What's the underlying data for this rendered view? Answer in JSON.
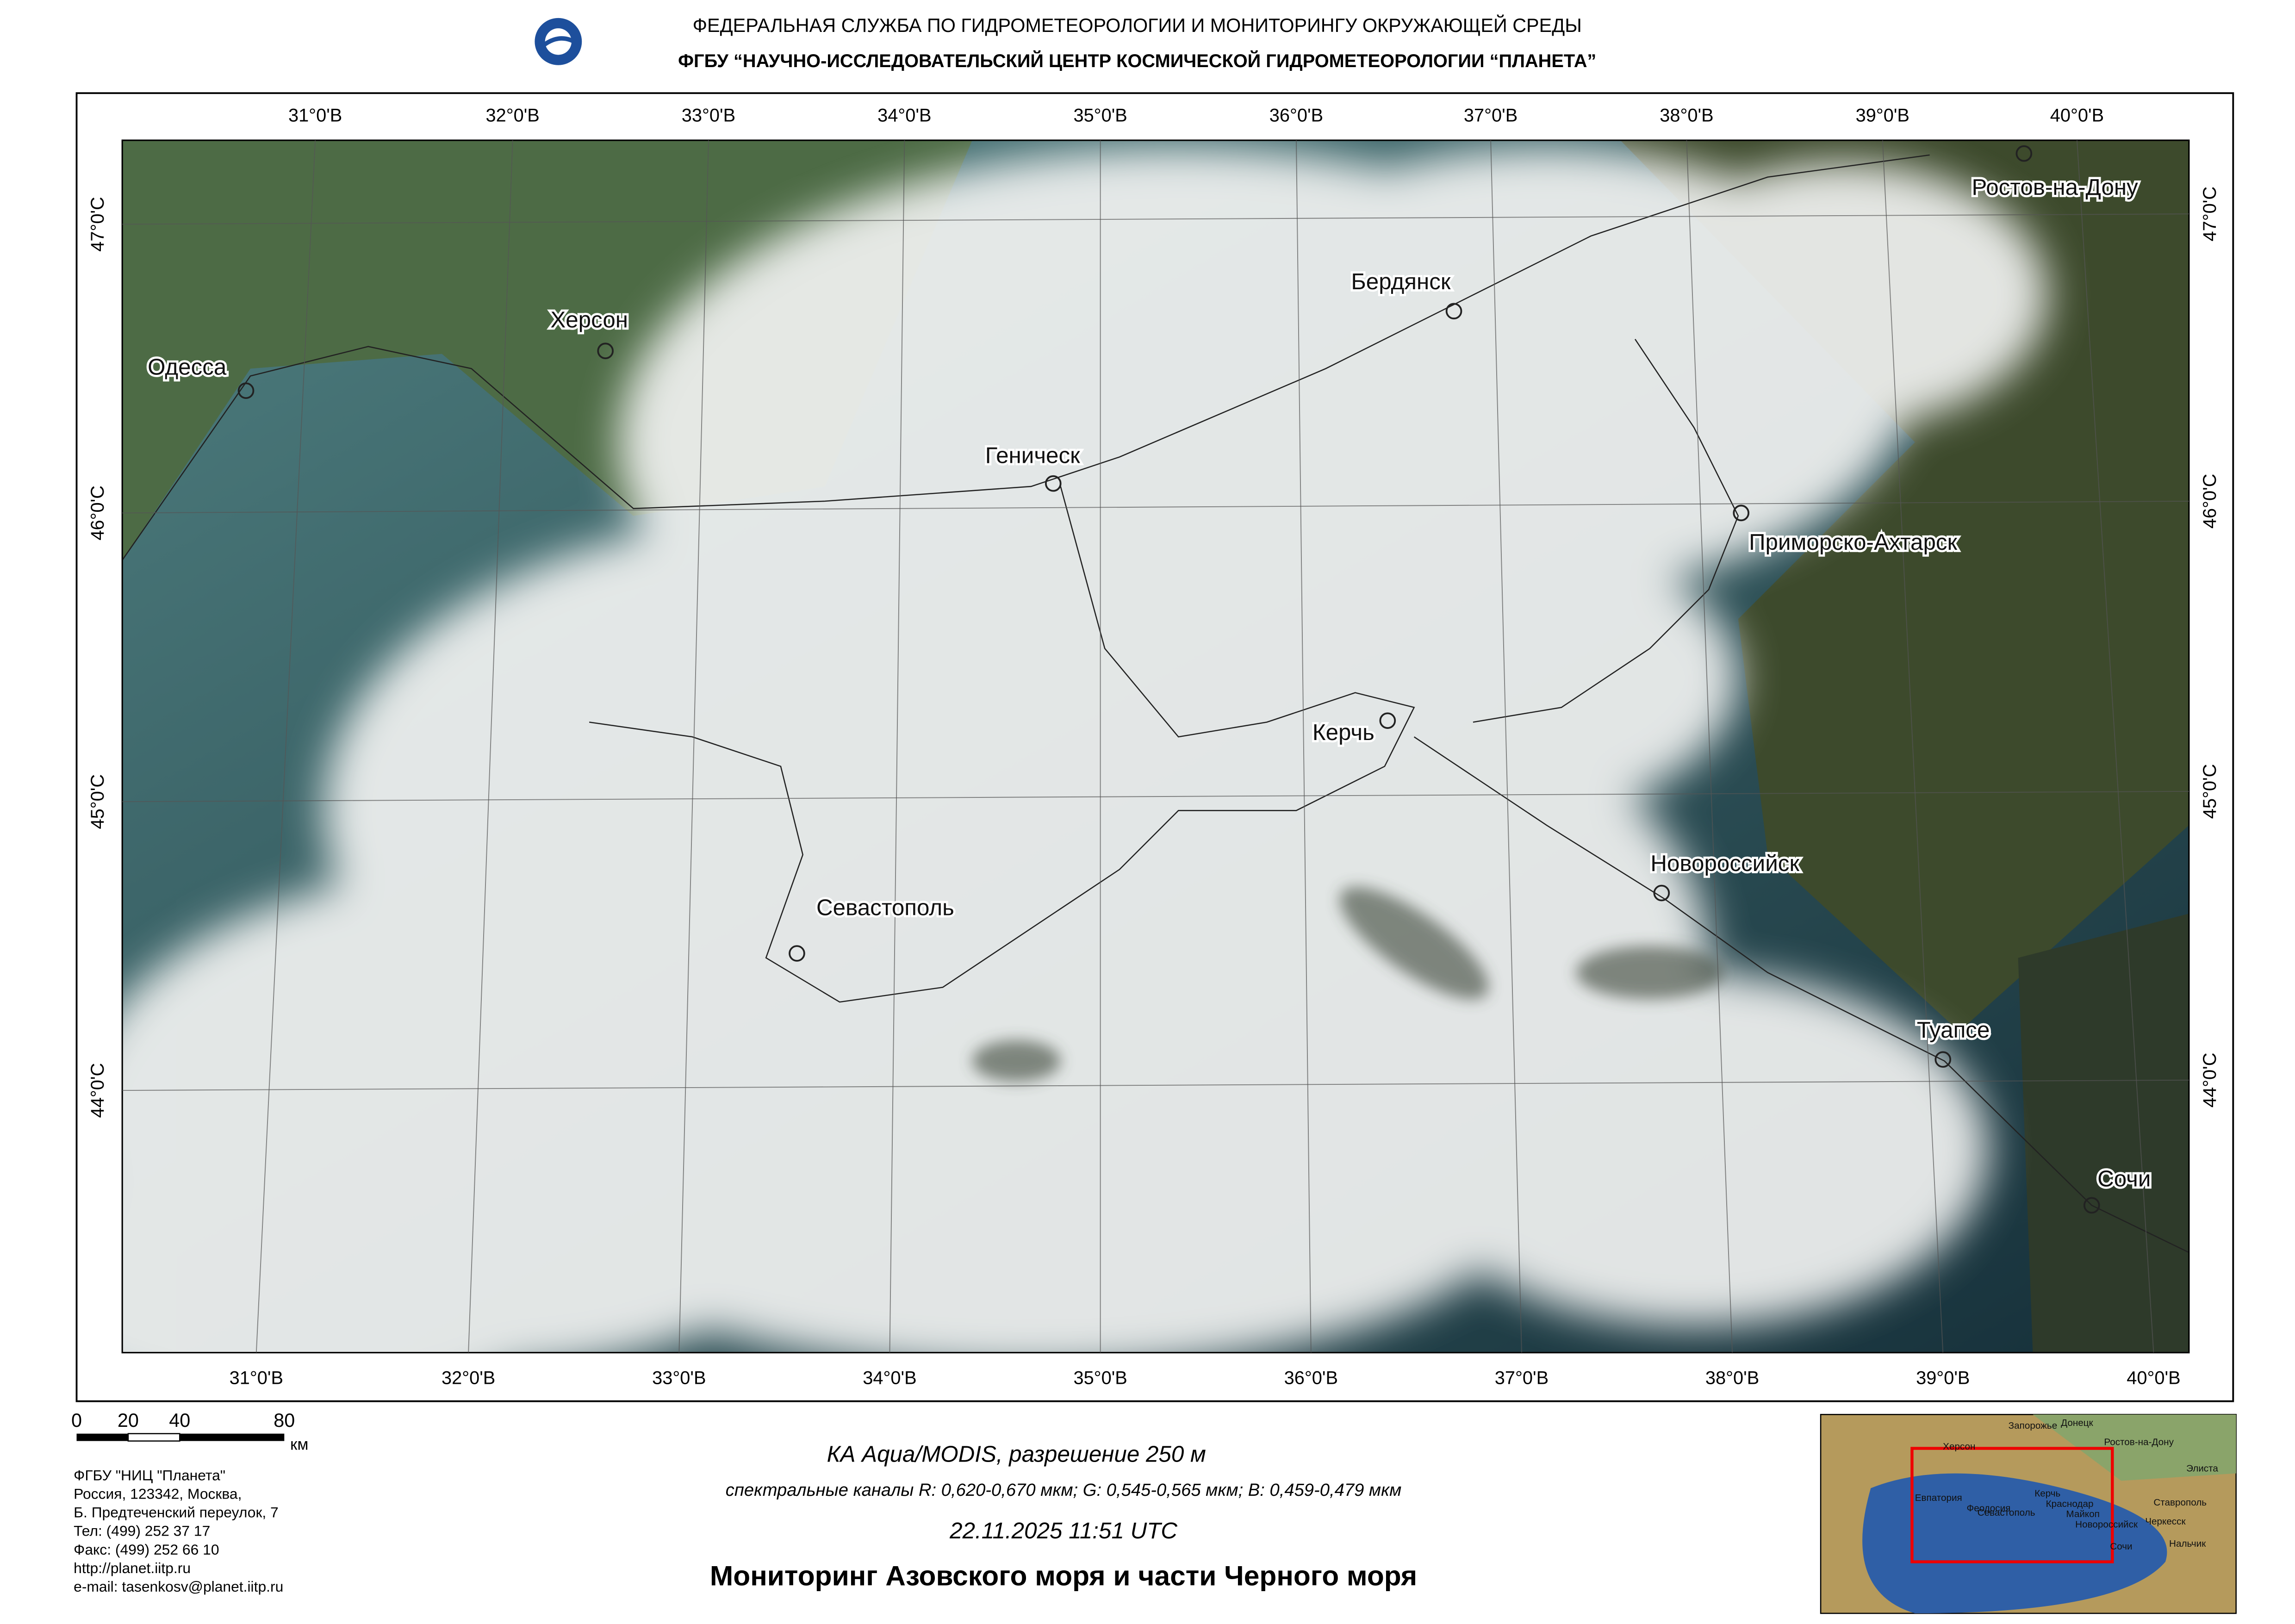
{
  "header": {
    "line1": "ФЕДЕРАЛЬНАЯ  СЛУЖБА  ПО ГИДРОМЕТЕОРОЛОГИИ И МОНИТОРИНГУ ОКРУЖАЮЩЕЙ СРЕДЫ",
    "line2": "ФГБУ “НАУЧНО-ИССЛЕДОВАТЕЛЬСКИЙ ЦЕНТР КОСМИЧЕСКОЙ ГИДРОМЕТЕОРОЛОГИИ “ПЛАНЕТА”"
  },
  "map": {
    "top_labels": [
      "31°0'В",
      "32°0'В",
      "33°0'В",
      "34°0'В",
      "35°0'В",
      "36°0'В",
      "37°0'В",
      "38°0'В",
      "39°0'В",
      "40°0'В"
    ],
    "bottom_labels": [
      "31°0'В",
      "32°0'В",
      "33°0'В",
      "34°0'В",
      "35°0'В",
      "36°0'В",
      "37°0'В",
      "38°0'В",
      "39°0'В",
      "40°0'В"
    ],
    "left_labels": [
      "47°0'С",
      "46°0'С",
      "45°0'С",
      "44°0'С"
    ],
    "right_labels": [
      "47°0'С",
      "46°0'С",
      "45°0'С",
      "44°0'С"
    ],
    "cities": [
      "Одесса",
      "Херсон",
      "Геническ",
      "Бердянск",
      "Ростов-на-Дону",
      "Приморско-Ахтарск",
      "Керчь",
      "Новороссийск",
      "Севастополь",
      "Туапсе",
      "Сочи"
    ]
  },
  "scale": {
    "labels": [
      "0",
      "20",
      "40",
      "80"
    ],
    "unit": "км"
  },
  "organization": [
    "ФГБУ \"НИЦ \"Планета\"",
    "Россия, 123342,  Москва,",
    "Б. Предтеченский переулок, 7",
    "Тел: (499) 252 37 17",
    "Факс: (499) 252 66 10",
    "http://planet.iitp.ru",
    "e-mail: tasenkosv@planet.iitp.ru"
  ],
  "caption": {
    "satellite": "КА Aqua/MODIS, разрешение 250 м",
    "channels": "спектральные каналы R: 0,620-0,670 мкм; G: 0,545-0,565 мкм;  B: 0,459-0,479 мкм",
    "datetime": "22.11.2025    11:51 UTC",
    "title": "Мониторинг Азовского моря и части Черного моря"
  },
  "inset": {
    "labels": [
      "Запорожье",
      "Донецк",
      "Херсон",
      "Ростов-на-Дону",
      "Элиста",
      "Евпатория",
      "Керчь",
      "Краснодар",
      "Ставрополь",
      "Феодосия",
      "Севастополь",
      "Майкоп",
      "Новороссийск",
      "Черкесск",
      "Сочи",
      "Нальчик"
    ]
  }
}
